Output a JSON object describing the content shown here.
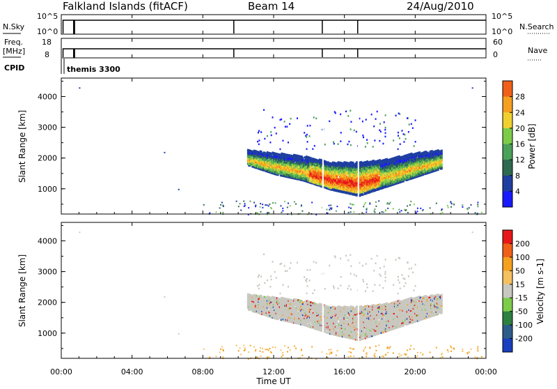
{
  "header": {
    "station": "Falkland Islands (fitACF)",
    "beam": "Beam 14",
    "date": "24/Aug/2010"
  },
  "noise_panel": {
    "left_label": "N.Sky",
    "right_label": "N.Search",
    "left_ticks": [
      "10^5",
      "10^0"
    ],
    "right_ticks": [
      "10^5",
      "10^0"
    ]
  },
  "freq_panel": {
    "left_label_line1": "Freq.",
    "left_label_line2": "[MHz]",
    "right_label": "Nave",
    "left_ticks": [
      "18",
      "8"
    ],
    "right_ticks": [
      "60",
      "0"
    ]
  },
  "cpid": {
    "label": "CPID",
    "value": "themis 3300"
  },
  "chart_data": [
    {
      "type": "heatmap",
      "name": "power",
      "ylabel": "Slant Range [km]",
      "yticks": [
        "4000",
        "3000",
        "2000",
        "1000"
      ],
      "colorbar_label": "Power [dB]",
      "colorbar_ticks": [
        "28",
        "24",
        "20",
        "16",
        "12",
        "8",
        "4"
      ],
      "colors": [
        "#1a1aff",
        "#1f3fa0",
        "#2e6a50",
        "#4ba05a",
        "#7ccc4a",
        "#f0d030",
        "#f5a020",
        "#f06018",
        "#e81818"
      ],
      "x_range_hours": [
        0,
        24
      ],
      "y_range_km": [
        180,
        4600
      ],
      "echo_region": {
        "t_start": 10.5,
        "t_end": 21.5,
        "range_low_km": [
          1800,
          1500,
          1300,
          1000,
          800,
          1100,
          1400,
          1700
        ],
        "range_high_km": [
          2300,
          2200,
          2100,
          1900,
          1900,
          2000,
          2200,
          2300
        ]
      }
    },
    {
      "type": "heatmap",
      "name": "velocity",
      "ylabel": "Slant Range [km]",
      "yticks": [
        "4000",
        "3000",
        "2000",
        "1000"
      ],
      "colorbar_label": "Velocity [m s-1]",
      "colorbar_ticks": [
        "200",
        "100",
        "50",
        "15",
        "-15",
        "-50",
        "-100",
        "-200"
      ],
      "colors": [
        "#1a3fbf",
        "#2d5c8a",
        "#2e8040",
        "#7ccc4a",
        "#c8c8c0",
        "#f5c060",
        "#f5a020",
        "#f06018",
        "#e81818"
      ],
      "x_range_hours": [
        0,
        24
      ],
      "y_range_km": [
        180,
        4600
      ]
    }
  ],
  "x_axis": {
    "ticks": [
      "00:00",
      "04:00",
      "08:00",
      "12:00",
      "16:00",
      "20:00",
      "00:00"
    ],
    "label": "Time UT"
  },
  "data_gaps_hours": [
    9.75,
    14.75,
    16.75
  ]
}
